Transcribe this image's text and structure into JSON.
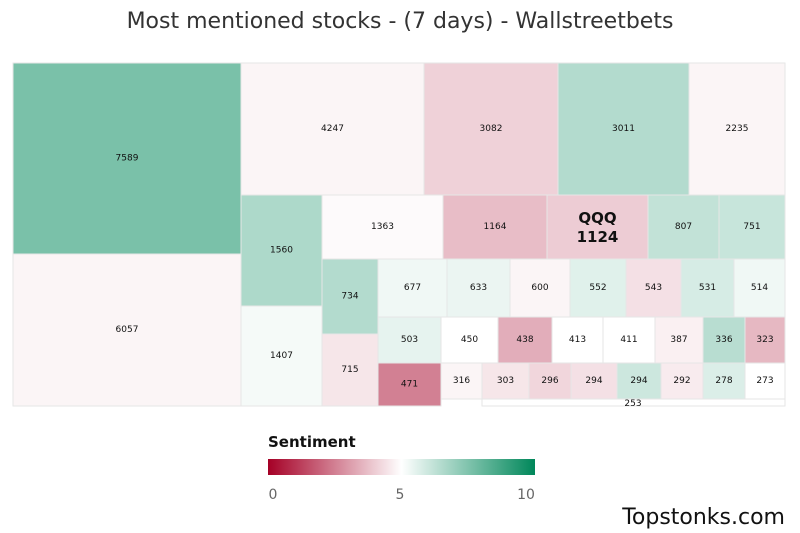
{
  "title": "Most mentioned stocks - (7 days) - Wallstreetbets",
  "watermark": "Topstonks.com",
  "legend": {
    "title": "Sentiment",
    "ticks": [
      "0",
      "5",
      "10"
    ],
    "colors": {
      "low": "#a50026",
      "mid": "#ffffff",
      "high": "#00875a"
    }
  },
  "chart_data": {
    "type": "treemap",
    "title": "Most mentioned stocks - (7 days) - Wallstreetbets",
    "color_scale": {
      "label": "Sentiment",
      "min": 0,
      "mid": 5,
      "max": 10
    },
    "tiles": [
      {
        "value": 7589,
        "sentiment": 7.6
      },
      {
        "value": 6057,
        "sentiment": 4.8
      },
      {
        "value": 4247,
        "sentiment": 4.8
      },
      {
        "value": 3082,
        "sentiment": 4.1
      },
      {
        "value": 3011,
        "sentiment": 6.5
      },
      {
        "value": 2235,
        "sentiment": 4.8
      },
      {
        "value": 1560,
        "sentiment": 6.6
      },
      {
        "value": 1407,
        "sentiment": 5.2
      },
      {
        "value": 1363,
        "sentiment": 4.9
      },
      {
        "value": 1164,
        "sentiment": 3.7
      },
      {
        "ticker": "QQQ",
        "value": 1124,
        "sentiment": 4.0
      },
      {
        "value": 807,
        "sentiment": 6.2
      },
      {
        "value": 751,
        "sentiment": 6.1
      },
      {
        "value": 734,
        "sentiment": 6.5
      },
      {
        "value": 715,
        "sentiment": 4.5
      },
      {
        "value": 677,
        "sentiment": 5.3
      },
      {
        "value": 633,
        "sentiment": 5.4
      },
      {
        "value": 600,
        "sentiment": 4.8
      },
      {
        "value": 552,
        "sentiment": 5.6
      },
      {
        "value": 543,
        "sentiment": 4.4
      },
      {
        "value": 531,
        "sentiment": 5.8
      },
      {
        "value": 514,
        "sentiment": 5.3
      },
      {
        "value": 503,
        "sentiment": 5.5
      },
      {
        "value": 471,
        "sentiment": 2.5
      },
      {
        "value": 450,
        "sentiment": 5.0
      },
      {
        "value": 438,
        "sentiment": 3.4
      },
      {
        "value": 413,
        "sentiment": 5.0
      },
      {
        "value": 411,
        "sentiment": 5.0
      },
      {
        "value": 387,
        "sentiment": 4.7
      },
      {
        "value": 336,
        "sentiment": 6.4
      },
      {
        "value": 323,
        "sentiment": 3.6
      },
      {
        "value": 316,
        "sentiment": 4.8
      },
      {
        "value": 303,
        "sentiment": 4.5
      },
      {
        "value": 296,
        "sentiment": 4.2
      },
      {
        "value": 294,
        "sentiment": 4.4
      },
      {
        "value": 294,
        "sentiment": 6.0
      },
      {
        "value": 292,
        "sentiment": 4.6
      },
      {
        "value": 278,
        "sentiment": 5.7
      },
      {
        "value": 273,
        "sentiment": 5.0
      },
      {
        "value": 253,
        "sentiment": 5.0
      }
    ]
  }
}
